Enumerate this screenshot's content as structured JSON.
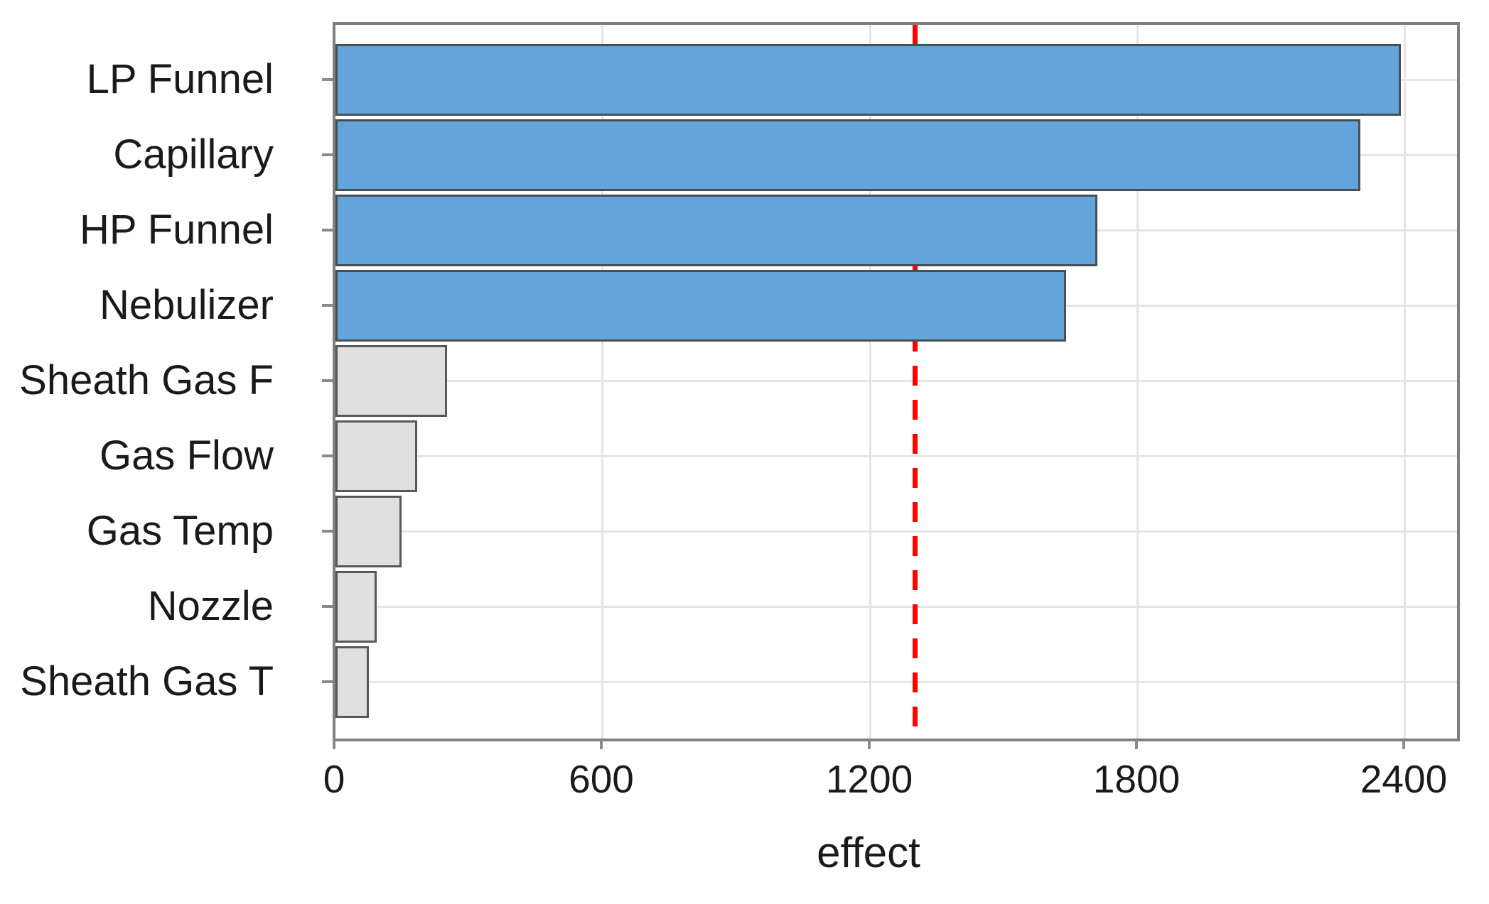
{
  "chart_data": {
    "type": "bar",
    "orientation": "horizontal",
    "title": "",
    "xlabel": "effect",
    "ylabel": "",
    "categories": [
      "LP Funnel",
      "Capillary",
      "HP Funnel",
      "Nebulizer",
      "Sheath Gas F",
      "Gas Flow",
      "Gas Temp",
      "Nozzle",
      "Sheath Gas T"
    ],
    "values": [
      2390,
      2300,
      1710,
      1640,
      250,
      183,
      148,
      92,
      75
    ],
    "significant": [
      true,
      true,
      true,
      true,
      false,
      false,
      false,
      false,
      false
    ],
    "x_ticks": [
      0,
      600,
      1200,
      1800,
      2400
    ],
    "xlim": [
      0,
      2520
    ],
    "grid": true,
    "legend_position": "none",
    "threshold_line": {
      "value": 1300,
      "style": "dashed",
      "color": "#FF0000"
    },
    "colors": {
      "significant_fill": "#63A5DB",
      "significant_border": "#464F56",
      "nonsignificant_fill": "#E0E0E0",
      "nonsignificant_border": "#585858",
      "gridline": "#E5E5E5",
      "axis_frame": "#7F7F7F",
      "text": "#1A1A1A",
      "background": "#FFFFFF"
    }
  }
}
